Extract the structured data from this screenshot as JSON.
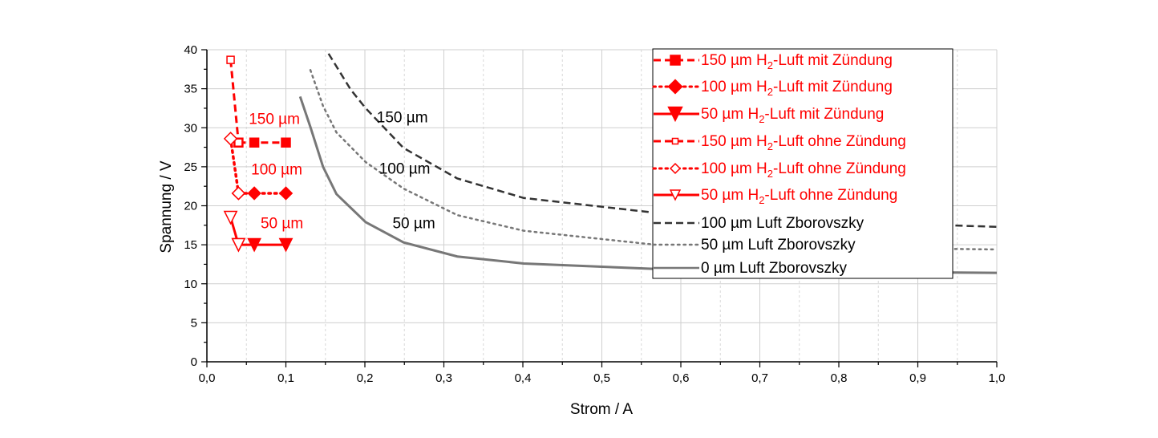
{
  "chart_data": {
    "type": "line",
    "xlabel": "Strom / A",
    "ylabel": "Spannung / V",
    "xlim": [
      0,
      1.0
    ],
    "ylim": [
      0,
      40
    ],
    "x_ticks": [
      "0,0",
      "0,1",
      "0,2",
      "0,3",
      "0,4",
      "0,5",
      "0,6",
      "0,7",
      "0,8",
      "0,9",
      "1,0"
    ],
    "y_ticks": [
      "0",
      "5",
      "10",
      "15",
      "20",
      "25",
      "30",
      "35",
      "40"
    ],
    "grid": true,
    "legend_placement": "top-right",
    "colors": {
      "red": "#ff0000",
      "dark": "#333333",
      "gray": "#777777"
    },
    "series": [
      {
        "name": "150 µm H2-Luft mit Zündung",
        "color": "#ff0000",
        "style": "dash",
        "marker": "square-filled",
        "x": [
          0.04,
          0.06,
          0.1
        ],
        "y": [
          28.1,
          28.1,
          28.1
        ]
      },
      {
        "name": "100 µm H2-Luft mit Zündung",
        "color": "#ff0000",
        "style": "dot",
        "marker": "diamond-filled",
        "x": [
          0.04,
          0.06,
          0.1
        ],
        "y": [
          21.6,
          21.6,
          21.6
        ]
      },
      {
        "name": "50 µm H2-Luft mit Zündung",
        "color": "#ff0000",
        "style": "solid",
        "marker": "triangle-down-filled",
        "x": [
          0.04,
          0.06,
          0.1
        ],
        "y": [
          15.0,
          15.0,
          15.0
        ]
      },
      {
        "name": "150 µm H2-Luft ohne Zündung",
        "color": "#ff0000",
        "style": "dash",
        "marker": "square-open",
        "x": [
          0.03,
          0.04
        ],
        "y": [
          38.7,
          28.1
        ]
      },
      {
        "name": "100 µm H2-Luft ohne Zündung",
        "color": "#ff0000",
        "style": "dot",
        "marker": "diamond-open",
        "x": [
          0.03,
          0.04
        ],
        "y": [
          28.6,
          21.6
        ]
      },
      {
        "name": "50 µm H2-Luft ohne Zündung",
        "color": "#ff0000",
        "style": "solid",
        "marker": "triangle-down-open",
        "x": [
          0.03,
          0.04
        ],
        "y": [
          18.5,
          15.0
        ]
      },
      {
        "name": "100 µm Luft Zborovszky",
        "color": "#333333",
        "style": "dash",
        "marker": "none",
        "x": [
          0.154,
          0.182,
          0.201,
          0.249,
          0.317,
          0.401,
          0.568,
          0.75,
          1.0
        ],
        "y": [
          39.5,
          34.9,
          32.5,
          27.4,
          23.5,
          21.0,
          19.1,
          18.1,
          17.3
        ]
      },
      {
        "name": "50 µm Luft Zborovszky",
        "color": "#777777",
        "style": "dot",
        "marker": "none",
        "x": [
          0.131,
          0.147,
          0.164,
          0.201,
          0.249,
          0.317,
          0.401,
          0.568,
          0.75,
          1.0
        ],
        "y": [
          37.4,
          32.8,
          29.4,
          25.6,
          22.2,
          18.8,
          16.8,
          15.0,
          14.7,
          14.4
        ]
      },
      {
        "name": "0 µm Luft Zborovszky",
        "color": "#777777",
        "style": "solid",
        "marker": "none",
        "x": [
          0.118,
          0.131,
          0.147,
          0.164,
          0.201,
          0.249,
          0.317,
          0.401,
          0.568,
          0.75,
          1.0
        ],
        "y": [
          34.0,
          30.1,
          25.0,
          21.5,
          17.9,
          15.3,
          13.5,
          12.6,
          11.9,
          11.6,
          11.4
        ]
      }
    ],
    "annotations": [
      {
        "text": "150 µm",
        "color": "#ff0000",
        "x": 0.053,
        "y": 30.5
      },
      {
        "text": "100 µm",
        "color": "#ff0000",
        "x": 0.056,
        "y": 24.0
      },
      {
        "text": "50 µm",
        "color": "#ff0000",
        "x": 0.068,
        "y": 17.1
      },
      {
        "text": "150 µm",
        "color": "#000000",
        "x": 0.215,
        "y": 30.7
      },
      {
        "text": "100 µm",
        "color": "#000000",
        "x": 0.218,
        "y": 24.1
      },
      {
        "text": "50 µm",
        "color": "#000000",
        "x": 0.235,
        "y": 17.1
      }
    ]
  }
}
